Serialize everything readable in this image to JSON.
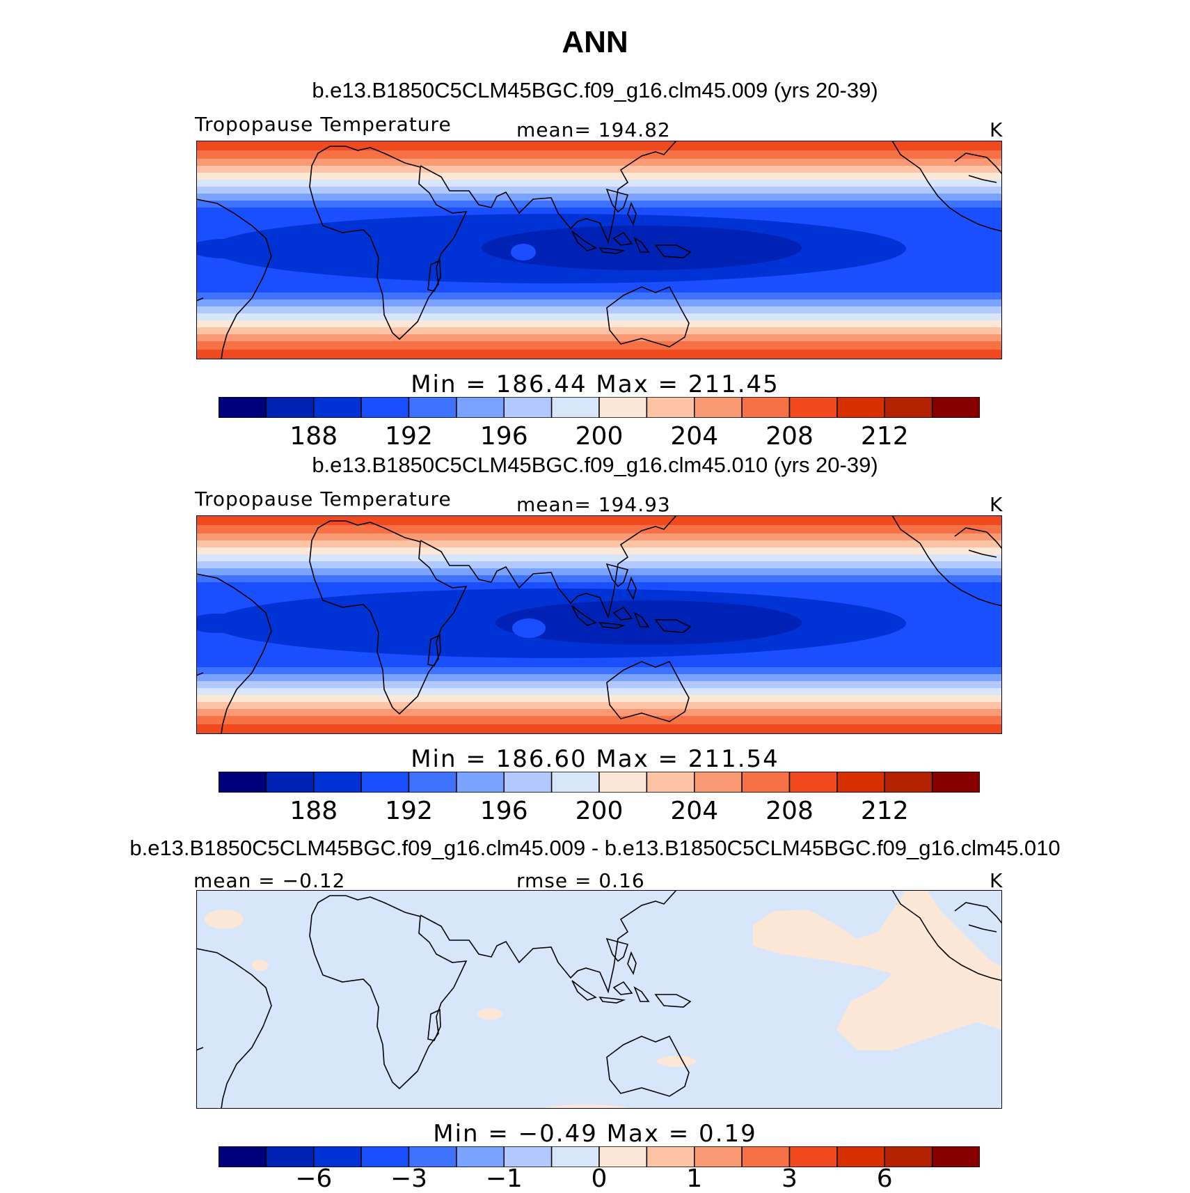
{
  "title": "ANN",
  "panels": [
    {
      "title": "b.e13.B1850C5CLM45BGC.f09_g16.clm45.009 (yrs 20-39)",
      "left_label": "Tropopause Temperature",
      "center_label": "mean= 194.82",
      "right_label": "K",
      "minmax": "Min = 186.44 Max = 211.45"
    },
    {
      "title": "b.e13.B1850C5CLM45BGC.f09_g16.clm45.010 (yrs 20-39)",
      "left_label": "Tropopause Temperature",
      "center_label": "mean= 194.93",
      "right_label": "K",
      "minmax": "Min = 186.60 Max = 211.54"
    },
    {
      "title": "b.e13.B1850C5CLM45BGC.f09_g16.clm45.009 - b.e13.B1850C5CLM45BGC.f09_g16.clm45.010",
      "left_label": "mean =   −0.12",
      "center_label": "rmse =    0.16",
      "right_label": "K",
      "minmax": "Min =  −0.49 Max =   0.19"
    }
  ],
  "colorbar_colors": [
    "#00007d",
    "#0022b4",
    "#0033d6",
    "#1a4fff",
    "#3e73ff",
    "#7aa2ff",
    "#b1c9ff",
    "#d7e6fb",
    "#fde7d6",
    "#fcc3a5",
    "#f99a75",
    "#f77146",
    "#f04a1e",
    "#d93000",
    "#b52200",
    "#860000"
  ],
  "colorbar_ticks_abs": [
    "188",
    "192",
    "196",
    "200",
    "204",
    "208",
    "212"
  ],
  "colorbar_ticks_diff": [
    "−6",
    "−3",
    "−1",
    "0",
    "1",
    "3",
    "6"
  ],
  "chart_data": [
    {
      "type": "heatmap",
      "title": "b.e13.B1850C5CLM45BGC.f09_g16.clm45.009 (yrs 20-39)",
      "variable": "Tropopause Temperature",
      "units": "K",
      "mean": 194.82,
      "min": 186.44,
      "max": 211.45,
      "levels": [
        186,
        188,
        190,
        192,
        194,
        196,
        198,
        200,
        202,
        204,
        206,
        208,
        210,
        212,
        214
      ]
    },
    {
      "type": "heatmap",
      "title": "b.e13.B1850C5CLM45BGC.f09_g16.clm45.010 (yrs 20-39)",
      "variable": "Tropopause Temperature",
      "units": "K",
      "mean": 194.93,
      "min": 186.6,
      "max": 211.54,
      "levels": [
        186,
        188,
        190,
        192,
        194,
        196,
        198,
        200,
        202,
        204,
        206,
        208,
        210,
        212,
        214
      ]
    },
    {
      "type": "heatmap",
      "title": "b.e13.B1850C5CLM45BGC.f09_g16.clm45.009 - b.e13.B1850C5CLM45BGC.f09_g16.clm45.010",
      "units": "K",
      "mean": -0.12,
      "rmse": 0.16,
      "min": -0.49,
      "max": 0.19,
      "levels": [
        -6,
        -3,
        -1,
        0,
        1,
        3,
        6
      ]
    }
  ]
}
